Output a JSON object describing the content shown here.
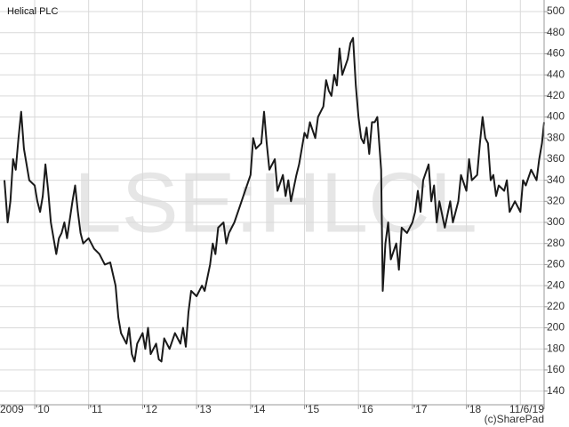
{
  "chart_data": {
    "type": "line",
    "title": "Helical PLC",
    "watermark": "LSE:HLCL",
    "credit": "(c)SharePad",
    "color": "#1a1a1a",
    "grid": true,
    "xlim": [
      2009.44,
      2019.44
    ],
    "ylim": [
      127,
      511
    ],
    "yticks": [
      140,
      160,
      180,
      200,
      220,
      240,
      260,
      280,
      300,
      320,
      340,
      360,
      380,
      400,
      420,
      440,
      460,
      480,
      500
    ],
    "xticks": [
      {
        "value": 2009.44,
        "label": "2009"
      },
      {
        "value": 2010,
        "label": "'10"
      },
      {
        "value": 2011,
        "label": "'11"
      },
      {
        "value": 2012,
        "label": "'12"
      },
      {
        "value": 2013,
        "label": "'13"
      },
      {
        "value": 2014,
        "label": "'14"
      },
      {
        "value": 2015,
        "label": "'15"
      },
      {
        "value": 2016,
        "label": "'16"
      },
      {
        "value": 2017,
        "label": "'17"
      },
      {
        "value": 2018,
        "label": "'18"
      },
      {
        "value": 2019.44,
        "label": "11/6/19"
      }
    ],
    "xgrid": [
      2010,
      2011,
      2012,
      2013,
      2014,
      2015,
      2016,
      2017,
      2018,
      2019
    ],
    "x": [
      2009.44,
      2009.5,
      2009.55,
      2009.6,
      2009.65,
      2009.7,
      2009.75,
      2009.8,
      2009.9,
      2010.0,
      2010.05,
      2010.1,
      2010.15,
      2010.2,
      2010.25,
      2010.3,
      2010.4,
      2010.45,
      2010.5,
      2010.55,
      2010.6,
      2010.7,
      2010.75,
      2010.8,
      2010.85,
      2010.9,
      2011.0,
      2011.1,
      2011.2,
      2011.3,
      2011.4,
      2011.5,
      2011.55,
      2011.6,
      2011.7,
      2011.75,
      2011.8,
      2011.85,
      2011.9,
      2012.0,
      2012.05,
      2012.1,
      2012.15,
      2012.25,
      2012.3,
      2012.35,
      2012.4,
      2012.5,
      2012.6,
      2012.7,
      2012.75,
      2012.8,
      2012.85,
      2012.9,
      2013.0,
      2013.1,
      2013.15,
      2013.25,
      2013.3,
      2013.35,
      2013.4,
      2013.5,
      2013.55,
      2013.6,
      2013.7,
      2013.8,
      2013.9,
      2014.0,
      2014.05,
      2014.1,
      2014.2,
      2014.25,
      2014.3,
      2014.35,
      2014.45,
      2014.5,
      2014.6,
      2014.65,
      2014.7,
      2014.75,
      2014.85,
      2014.9,
      2015.0,
      2015.05,
      2015.1,
      2015.2,
      2015.25,
      2015.35,
      2015.4,
      2015.45,
      2015.5,
      2015.55,
      2015.6,
      2015.65,
      2015.7,
      2015.8,
      2015.85,
      2015.9,
      2015.95,
      2016.0,
      2016.05,
      2016.1,
      2016.15,
      2016.2,
      2016.25,
      2016.3,
      2016.35,
      2016.42,
      2016.45,
      2016.5,
      2016.55,
      2016.6,
      2016.7,
      2016.75,
      2016.8,
      2016.9,
      2017.0,
      2017.05,
      2017.1,
      2017.15,
      2017.2,
      2017.3,
      2017.35,
      2017.4,
      2017.45,
      2017.5,
      2017.6,
      2017.7,
      2017.75,
      2017.85,
      2017.9,
      2018.0,
      2018.05,
      2018.1,
      2018.2,
      2018.25,
      2018.3,
      2018.35,
      2018.4,
      2018.45,
      2018.5,
      2018.55,
      2018.6,
      2018.7,
      2018.75,
      2018.8,
      2018.9,
      2019.0,
      2019.05,
      2019.1,
      2019.2,
      2019.3,
      2019.35,
      2019.4,
      2019.44
    ],
    "values": [
      340,
      300,
      320,
      360,
      350,
      380,
      405,
      370,
      340,
      335,
      320,
      310,
      325,
      355,
      330,
      300,
      270,
      285,
      290,
      300,
      285,
      320,
      335,
      310,
      290,
      280,
      285,
      275,
      270,
      260,
      262,
      240,
      210,
      195,
      185,
      200,
      175,
      168,
      185,
      195,
      180,
      200,
      175,
      185,
      170,
      168,
      190,
      180,
      195,
      185,
      200,
      182,
      215,
      235,
      230,
      240,
      235,
      260,
      280,
      270,
      295,
      300,
      280,
      290,
      300,
      315,
      330,
      345,
      380,
      370,
      375,
      405,
      375,
      350,
      360,
      330,
      345,
      325,
      340,
      320,
      345,
      355,
      385,
      380,
      395,
      380,
      400,
      410,
      435,
      425,
      420,
      440,
      430,
      465,
      440,
      455,
      470,
      475,
      430,
      400,
      380,
      375,
      390,
      365,
      395,
      395,
      400,
      350,
      235,
      280,
      300,
      265,
      280,
      255,
      295,
      290,
      300,
      310,
      330,
      310,
      340,
      355,
      320,
      335,
      300,
      320,
      295,
      320,
      300,
      320,
      345,
      330,
      360,
      340,
      345,
      375,
      400,
      380,
      375,
      340,
      345,
      325,
      335,
      330,
      340,
      310,
      320,
      310,
      340,
      335,
      350,
      340,
      360,
      375,
      395
    ]
  }
}
